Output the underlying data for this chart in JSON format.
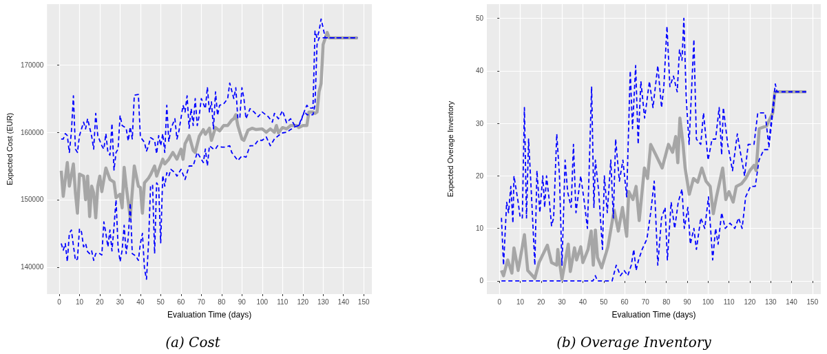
{
  "chart_data": [
    {
      "type": "line",
      "title": "(a) Cost",
      "xlabel": "Evaluation Time (days)",
      "ylabel": "Expected Cost (EUR)",
      "xlim": [
        -6,
        154
      ],
      "ylim": [
        136000,
        179000
      ],
      "xticks": [
        0,
        10,
        20,
        30,
        40,
        50,
        60,
        70,
        80,
        90,
        100,
        110,
        120,
        130,
        140,
        150
      ],
      "yticks": [
        140000,
        150000,
        160000,
        170000
      ],
      "grid": true,
      "marker": "none",
      "series": [
        {
          "color": "#0000ff",
          "line_style": "dashed",
          "x": [
            1,
            2,
            3,
            4,
            5,
            6,
            7,
            8,
            9,
            10,
            12,
            13,
            14,
            16,
            17,
            18,
            19,
            21,
            22,
            23,
            24,
            25,
            26,
            27,
            28,
            29,
            30,
            31,
            33,
            34,
            35,
            36,
            37,
            39,
            40,
            42,
            43,
            44,
            45,
            47,
            48,
            49,
            50,
            51,
            52,
            53,
            54,
            55,
            57,
            58,
            59,
            61,
            62,
            63,
            64,
            65,
            66,
            67,
            68,
            69,
            70,
            72,
            73,
            74,
            75,
            76,
            77,
            78,
            79,
            81,
            83,
            84,
            86,
            87,
            88,
            89,
            90,
            91,
            92,
            94,
            96,
            98,
            100,
            103,
            105,
            106,
            108,
            110,
            112,
            114,
            116,
            118,
            119,
            120,
            121,
            122,
            123,
            125,
            126,
            127,
            128,
            129,
            130,
            131,
            147
          ],
          "values": [
            159000,
            159000,
            159800,
            159500,
            157000,
            160000,
            165400,
            157500,
            157000,
            159500,
            161500,
            160500,
            162000,
            159400,
            157500,
            162800,
            159500,
            158000,
            157500,
            159800,
            157000,
            156600,
            161300,
            154400,
            157000,
            157500,
            162500,
            161000,
            160600,
            158700,
            160800,
            159000,
            165500,
            165600,
            159300,
            158500,
            157200,
            158000,
            159200,
            158800,
            156800,
            159500,
            158000,
            159800,
            157000,
            164000,
            158600,
            160500,
            162000,
            159000,
            160200,
            164000,
            163000,
            165400,
            160600,
            163500,
            161000,
            165000,
            161000,
            162500,
            165000,
            163500,
            166700,
            163000,
            164500,
            160500,
            166000,
            162500,
            164000,
            164200,
            165000,
            167300,
            165000,
            166600,
            162000,
            162200,
            166600,
            165000,
            162000,
            163500,
            163000,
            162300,
            163000,
            162300,
            161500,
            162800,
            162000,
            163200,
            161400,
            162000,
            161000,
            161000,
            161500,
            162500,
            163300,
            164000,
            163600,
            163600,
            175000,
            174000,
            175000,
            176800,
            175500,
            174000,
            174000
          ]
        },
        {
          "color": "#0000ff",
          "line_style": "dashed",
          "x": [
            1,
            2,
            3,
            4,
            5,
            6,
            7,
            8,
            9,
            10,
            11,
            12,
            13,
            14,
            15,
            16,
            17,
            18,
            19,
            20,
            21,
            22,
            23,
            24,
            25,
            26,
            27,
            28,
            29,
            30,
            31,
            32,
            33,
            34,
            35,
            36,
            37,
            38,
            39,
            40,
            41,
            42,
            43,
            44,
            45,
            46,
            47,
            48,
            49,
            50,
            51,
            52,
            53,
            54,
            55,
            57,
            58,
            60,
            62,
            64,
            66,
            68,
            70,
            71,
            72,
            73,
            74,
            76,
            77,
            78,
            80,
            82,
            84,
            85,
            87,
            88,
            90,
            92,
            94,
            96,
            98,
            100,
            102,
            104,
            106,
            108,
            110,
            112,
            114,
            116,
            118,
            120,
            121,
            122,
            125,
            126,
            127,
            128,
            147
          ],
          "values": [
            143500,
            142500,
            143500,
            140800,
            145000,
            145500,
            143200,
            141000,
            141200,
            145700,
            145200,
            143000,
            143500,
            142300,
            142000,
            142400,
            141000,
            142000,
            142100,
            142000,
            141800,
            146700,
            145000,
            143000,
            145500,
            142400,
            146000,
            150000,
            143000,
            140800,
            142500,
            146200,
            142000,
            144300,
            149500,
            142000,
            141800,
            141500,
            141000,
            143500,
            145000,
            139800,
            138200,
            143500,
            152000,
            152200,
            142000,
            152500,
            152000,
            143600,
            153600,
            152000,
            154000,
            153500,
            154500,
            154000,
            153500,
            154500,
            153000,
            155000,
            155000,
            157000,
            156000,
            155500,
            157500,
            155000,
            158000,
            157500,
            157500,
            158000,
            157800,
            157800,
            158000,
            157000,
            156200,
            155800,
            156500,
            156300,
            158000,
            158000,
            158800,
            158800,
            159300,
            158000,
            159000,
            159500,
            159900,
            160000,
            160400,
            160800,
            161000,
            162500,
            163000,
            162600,
            162600,
            164000,
            173000,
            174000,
            174000
          ]
        },
        {
          "color": "#a6a6a6",
          "line_style": "solid",
          "x": [
            1,
            2,
            4,
            5,
            7,
            8,
            9,
            10,
            12,
            13,
            14,
            15,
            16,
            17,
            18,
            19,
            20,
            21,
            23,
            25,
            27,
            28,
            30,
            31,
            32,
            33,
            35,
            37,
            39,
            40,
            41,
            42,
            44,
            45,
            47,
            48,
            51,
            52,
            54,
            56,
            58,
            60,
            61,
            62,
            64,
            66,
            67,
            69,
            71,
            72,
            74,
            75,
            77,
            79,
            81,
            83,
            85,
            86,
            87,
            88,
            90,
            91,
            93,
            95,
            97,
            100,
            102,
            104,
            106,
            107,
            108,
            110,
            112,
            114,
            117,
            118,
            120,
            122,
            123,
            125,
            126,
            127,
            128,
            129,
            130,
            132,
            133,
            147
          ],
          "values": [
            154300,
            150500,
            155500,
            152000,
            155300,
            151000,
            148000,
            153800,
            153500,
            150000,
            153500,
            147500,
            152000,
            151000,
            147300,
            152000,
            153500,
            151200,
            154700,
            153000,
            152600,
            150300,
            150800,
            148800,
            154800,
            152000,
            147400,
            155000,
            152000,
            151800,
            148000,
            152500,
            153200,
            153700,
            155000,
            153500,
            156000,
            155300,
            156000,
            157000,
            156000,
            157500,
            156000,
            158300,
            159500,
            157300,
            157000,
            159400,
            160400,
            159700,
            160600,
            158800,
            160700,
            160200,
            161000,
            161000,
            161800,
            162000,
            162600,
            161000,
            159000,
            158800,
            160300,
            160600,
            160400,
            160500,
            160000,
            160500,
            160000,
            161000,
            159900,
            160700,
            160500,
            161000,
            161000,
            160700,
            161000,
            161000,
            163000,
            163000,
            162800,
            163000,
            166000,
            167200,
            173000,
            174800,
            174000,
            174000
          ]
        }
      ]
    },
    {
      "type": "line",
      "title": "(b) Overage Inventory",
      "xlabel": "Evaluation Time (days)",
      "ylabel": "Expected Overage Inventory",
      "xlim": [
        -6,
        154
      ],
      "ylim": [
        -2.5,
        52.7
      ],
      "xticks": [
        0,
        10,
        20,
        30,
        40,
        50,
        60,
        70,
        80,
        90,
        100,
        110,
        120,
        130,
        140,
        150
      ],
      "yticks": [
        0,
        10,
        20,
        30,
        40,
        50
      ],
      "grid": true,
      "marker": "none",
      "series": [
        {
          "color": "#0000ff",
          "line_style": "dashed",
          "x": [
            1,
            2,
            3.5,
            4.4,
            5.5,
            6.5,
            7,
            9,
            10,
            11,
            12,
            13,
            14,
            15.3,
            17,
            18,
            19.4,
            20.8,
            21.7,
            22.6,
            24,
            25,
            26,
            27.5,
            28.8,
            30,
            31.5,
            32.7,
            34.4,
            35.5,
            36.7,
            39,
            40.7,
            42.2,
            44.2,
            45.3,
            46,
            47.6,
            49.4,
            50.3,
            51.7,
            53.4,
            54.6,
            55.7,
            57.5,
            59.2,
            61,
            62.7,
            63.8,
            65.3,
            66.5,
            67.8,
            69.6,
            71.9,
            73.6,
            75.9,
            77.7,
            78.8,
            80.3,
            81.7,
            83.4,
            85.2,
            86.3,
            87.5,
            88.4,
            89.5,
            90.9,
            93.2,
            94.4,
            96.5,
            97.8,
            100,
            101.9,
            103.6,
            105.3,
            106.5,
            107.3,
            109.4,
            111.7,
            114,
            115.7,
            117.5,
            119.2,
            122,
            123.8,
            127.3,
            129,
            130.7,
            132.2,
            133,
            147
          ],
          "values": [
            12,
            3,
            15,
            13,
            18,
            11,
            20,
            15,
            12,
            12,
            33,
            12,
            27,
            17,
            3,
            21,
            13,
            20,
            14,
            20,
            15,
            10.5,
            12,
            28,
            20,
            3,
            23,
            17,
            14,
            26,
            13,
            20,
            15,
            10,
            37,
            14,
            23,
            17,
            6,
            20,
            13,
            23,
            12,
            27,
            19,
            23,
            16,
            40,
            29,
            41,
            26,
            38,
            31,
            38,
            33,
            41,
            33,
            37,
            48.5,
            37,
            39,
            36,
            44,
            42,
            50,
            35,
            26,
            46,
            27,
            26,
            32,
            23,
            27,
            27,
            33,
            24,
            33,
            26,
            21,
            28,
            24,
            20,
            26,
            26,
            32,
            32,
            26,
            32,
            37.5,
            36,
            36
          ]
        },
        {
          "color": "#0000ff",
          "line_style": "dashed",
          "x": [
            1,
            44.8,
            46,
            47,
            54,
            56,
            58,
            59.8,
            61.5,
            63.2,
            64.4,
            65.5,
            66.7,
            68.4,
            70.7,
            72.5,
            74.2,
            75.9,
            77.7,
            79.4,
            80.5,
            82.3,
            84,
            85.7,
            87.5,
            88.6,
            90.3,
            91.5,
            93.2,
            94.4,
            96.5,
            98.4,
            100.2,
            102.2,
            103.6,
            104.8,
            106.5,
            108.2,
            110.5,
            112.8,
            114.6,
            116.3,
            118,
            120.3,
            122.6,
            124.4,
            126.7,
            129,
            130.7,
            132.2,
            147
          ],
          "values": [
            0,
            0,
            1,
            0,
            0,
            3,
            1,
            2,
            1,
            3,
            6,
            2,
            4,
            6,
            8,
            13,
            19,
            3,
            12,
            14,
            4,
            15,
            10,
            15,
            17.5,
            10,
            14,
            7,
            10,
            6,
            12,
            10,
            16,
            4,
            10,
            7,
            13,
            10,
            11,
            10,
            12,
            10,
            16,
            18,
            18,
            23,
            25,
            25,
            31,
            36,
            36
          ]
        },
        {
          "color": "#a6a6a6",
          "line_style": "solid",
          "x": [
            1,
            2,
            4,
            6,
            7,
            9,
            12,
            13.6,
            17,
            19,
            23,
            25,
            27.5,
            28,
            30,
            33,
            34,
            36,
            37,
            39,
            40,
            42.5,
            44,
            45,
            46,
            47,
            49,
            52,
            55,
            57,
            59,
            61,
            62,
            64,
            65.5,
            67,
            69.5,
            71,
            72.5,
            75,
            78,
            81,
            83,
            84.5,
            85.5,
            86.5,
            88,
            89,
            91,
            93,
            95,
            97,
            99,
            101,
            102.5,
            104,
            107,
            108.5,
            110,
            112,
            113.5,
            116,
            118,
            120,
            122,
            123,
            124.5,
            128,
            131,
            132,
            147
          ],
          "values": [
            2,
            1,
            4,
            1.5,
            6.3,
            2,
            8.8,
            2,
            0.5,
            3.5,
            6.8,
            3.5,
            3,
            6,
            0.3,
            7,
            1.8,
            6.3,
            4,
            6.5,
            3.5,
            6,
            9.5,
            3,
            9.7,
            4.5,
            2.5,
            6.5,
            13.5,
            9.5,
            14,
            8.5,
            17,
            15.5,
            18,
            11.5,
            21.5,
            19.5,
            26,
            24,
            21.5,
            26,
            24.5,
            27.5,
            22.5,
            31,
            26,
            21.5,
            16.5,
            19.5,
            18.8,
            21.5,
            19,
            18,
            12.8,
            16,
            21.5,
            15.5,
            17,
            15,
            18,
            18.5,
            19.5,
            21,
            22,
            21,
            29,
            29.5,
            32,
            36,
            36
          ]
        }
      ]
    }
  ]
}
